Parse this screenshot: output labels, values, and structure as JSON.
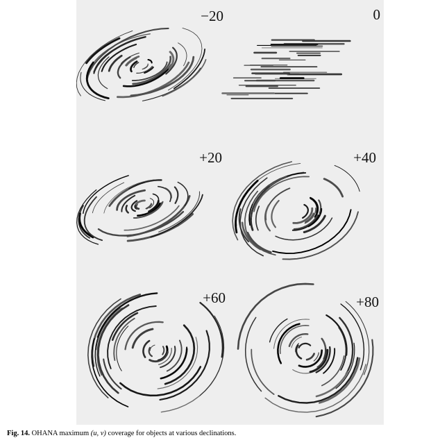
{
  "figure": {
    "panels": [
      {
        "label": "−20",
        "declination": -20
      },
      {
        "label": "0",
        "declination": 0
      },
      {
        "label": "+20",
        "declination": 20
      },
      {
        "label": "+40",
        "declination": 40
      },
      {
        "label": "+60",
        "declination": 60
      },
      {
        "label": "+80",
        "declination": 80
      }
    ]
  },
  "caption": {
    "number": "Fig. 14.",
    "text_before": " OHANA maximum ",
    "uv": "(u, v)",
    "text_after": " coverage for objects at various declinations."
  }
}
